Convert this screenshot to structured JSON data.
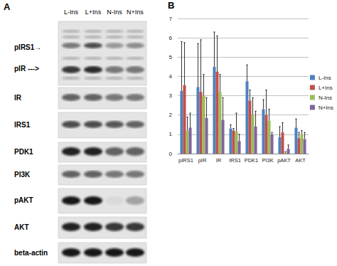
{
  "panel_labels": [
    "A",
    "B"
  ],
  "blot": {
    "lanes": [
      "L-Ins",
      "L+Ins",
      "N-Ins",
      "N+Ins"
    ],
    "rows": [
      "pIRS1→",
      "pIR --->",
      "IR",
      "IRS1",
      "PDK1",
      "PI3K",
      "pAKT",
      "AKT",
      "beta-actin"
    ]
  },
  "chart_data": {
    "type": "bar",
    "categories": [
      "pIRS1",
      "pIR",
      "IR",
      "IRS1",
      "PDK1",
      "PI3K",
      "pAKT",
      "AKT"
    ],
    "series": [
      {
        "name": "L-Ins",
        "color": "#4f81bd",
        "values": [
          3.25,
          3.45,
          4.5,
          1.3,
          3.75,
          2.3,
          0.85,
          1.35
        ],
        "errors": [
          2.55,
          2.25,
          1.8,
          0.2,
          0.85,
          0.5,
          0.55,
          0.45
        ]
      },
      {
        "name": "L+Ins",
        "color": "#c0504d",
        "values": [
          3.55,
          3.2,
          4.25,
          1.2,
          2.75,
          2.0,
          1.1,
          0.8
        ],
        "errors": [
          2.2,
          2.7,
          1.85,
          0.1,
          0.55,
          1.3,
          0.5,
          0.3
        ]
      },
      {
        "name": "N-Ins",
        "color": "#9bbb59",
        "values": [
          1.2,
          3.0,
          3.2,
          1.15,
          2.0,
          1.7,
          0.05,
          1.0
        ],
        "errors": [
          0.7,
          1.1,
          0.9,
          0.95,
          0.9,
          0.6,
          0.05,
          0.2
        ]
      },
      {
        "name": "N+Ins",
        "color": "#8064a2",
        "values": [
          1.35,
          1.85,
          1.75,
          0.65,
          1.4,
          1.0,
          0.25,
          0.75
        ],
        "errors": [
          0.75,
          1.05,
          1.15,
          0.35,
          0.8,
          0.1,
          0.2,
          0.35
        ]
      }
    ],
    "ylim": [
      0,
      7
    ],
    "yticks": [
      0,
      1,
      2,
      3,
      4,
      5,
      6,
      7
    ],
    "grid": true,
    "legend": "right"
  }
}
